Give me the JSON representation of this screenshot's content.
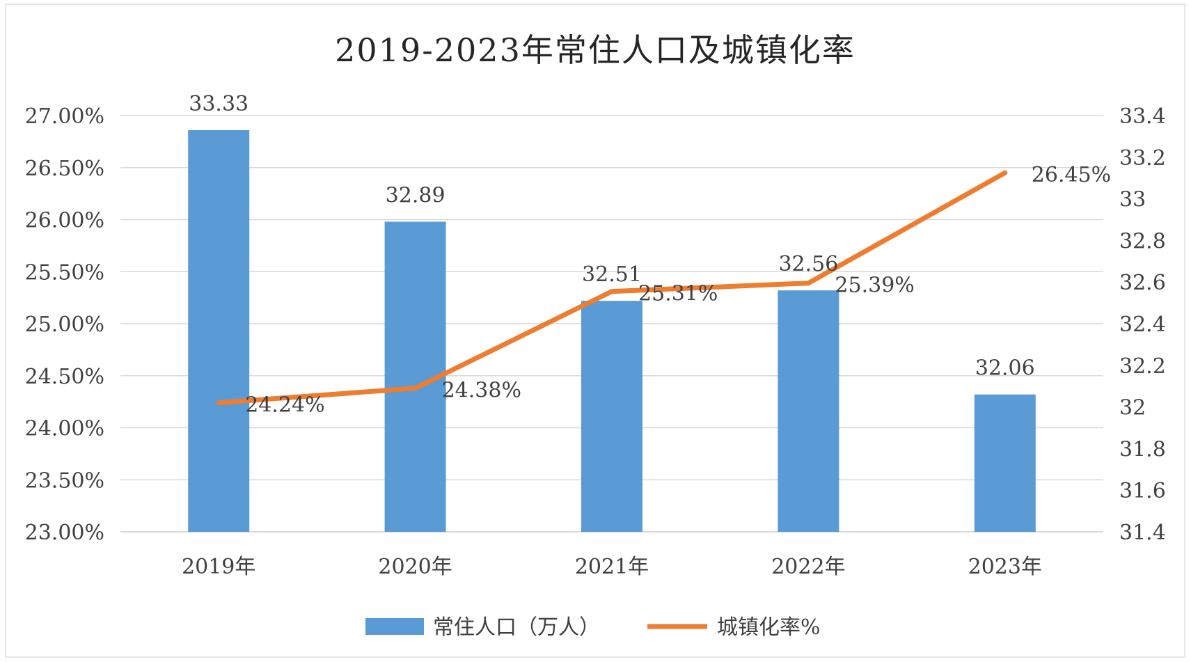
{
  "chart_data": {
    "type": "bar",
    "title": "2019-2023年常住人口及城镇化率",
    "categories": [
      "2019年",
      "2020年",
      "2021年",
      "2022年",
      "2023年"
    ],
    "series": [
      {
        "name": "常住人口（万人）",
        "type": "bar",
        "axis": "right",
        "values": [
          33.33,
          32.89,
          32.51,
          32.56,
          32.06
        ],
        "labels": [
          "33.33",
          "32.89",
          "32.51",
          "32.56",
          "32.06"
        ],
        "color": "#5B9BD5"
      },
      {
        "name": "城镇化率%",
        "type": "line",
        "axis": "left",
        "values": [
          24.24,
          24.38,
          25.31,
          25.39,
          26.45
        ],
        "labels": [
          "24.24%",
          "24.38%",
          "25.31%",
          "25.39%",
          "26.45%"
        ],
        "color": "#ED7D31"
      }
    ],
    "y_left": {
      "min": 23.0,
      "max": 27.0,
      "ticks": [
        23.0,
        23.5,
        24.0,
        24.5,
        25.0,
        25.5,
        26.0,
        26.5,
        27.0
      ],
      "tick_labels": [
        "23.00%",
        "23.50%",
        "24.00%",
        "24.50%",
        "25.00%",
        "25.50%",
        "26.00%",
        "26.50%",
        "27.00%"
      ]
    },
    "y_right": {
      "min": 31.4,
      "max": 33.4,
      "ticks": [
        31.4,
        31.6,
        31.8,
        32.0,
        32.2,
        32.4,
        32.6,
        32.8,
        33.0,
        33.2,
        33.4
      ],
      "tick_labels": [
        "31.4",
        "31.6",
        "31.8",
        "32",
        "32.2",
        "32.4",
        "32.6",
        "32.8",
        "33",
        "33.2",
        "33.4"
      ]
    },
    "grid": true,
    "legend": "bottom"
  }
}
